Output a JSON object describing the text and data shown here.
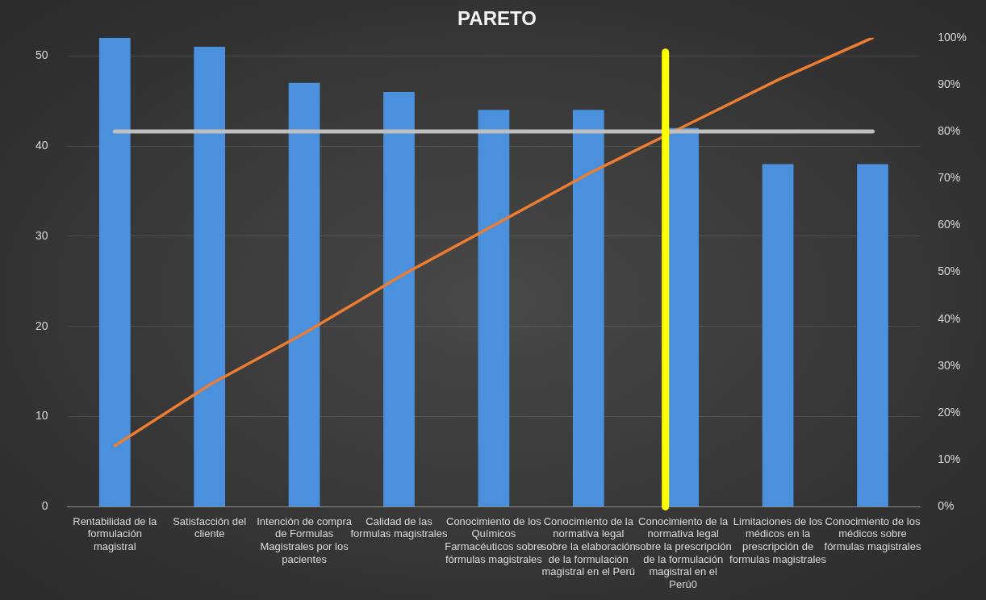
{
  "chart_data": {
    "type": "bar",
    "title": "PARETO",
    "categories": [
      "Rentabilidad de la formulación magistral",
      "Satisfacción del cliente",
      "Intención de compra  de Formulas Magistrales por los pacientes",
      "Calidad de las formulas magistrales",
      "Conocimiento de los Químicos Farmacéuticos sobre fórmulas magistrales",
      "Conocimiento de la normativa legal sobre la elaboración de la formulación magistral en el Perú",
      "Conocimiento de la normativa legal sobre la prescripción de la formulación magistral en el Perú0",
      "Limitaciones de los médicos en la prescripción de formulas magistrales",
      "Conocimiento de los médicos sobre fórmulas magistrales"
    ],
    "series": [
      {
        "color": "#4a90dc",
        "values": [
          52,
          51,
          47,
          46,
          44,
          44,
          42,
          38,
          38
        ]
      },
      {
        "type": "line",
        "axis": "y2",
        "color": "#ed7d31",
        "marker": "none",
        "values": [
          13,
          26,
          37,
          49,
          60,
          71,
          81,
          91,
          100
        ]
      }
    ],
    "ylim": [
      0,
      52
    ],
    "yticks": [
      0,
      10,
      20,
      30,
      40,
      50
    ],
    "y2lim": [
      0,
      100
    ],
    "y2ticks": [
      {
        "value": 0,
        "label": "0%"
      },
      {
        "value": 10,
        "label": "10%"
      },
      {
        "value": 20,
        "label": "20%"
      },
      {
        "value": 30,
        "label": "30%"
      },
      {
        "value": 40,
        "label": "40%"
      },
      {
        "value": 50,
        "label": "50%"
      },
      {
        "value": 60,
        "label": "60%"
      },
      {
        "value": 70,
        "label": "70%"
      },
      {
        "value": 80,
        "label": "80%"
      },
      {
        "value": 90,
        "label": "90%"
      },
      {
        "value": 100,
        "label": "100%"
      }
    ],
    "ref_lines": [
      {
        "axis": "y2",
        "value": 80,
        "color": "#bfbfbf"
      },
      {
        "axis": "x",
        "value": "Conocimiento de la normativa legal sobre la prescripción de la formulación magistral en el Perú0",
        "color": "#ffff00"
      }
    ],
    "grid": "y",
    "legend": false
  }
}
